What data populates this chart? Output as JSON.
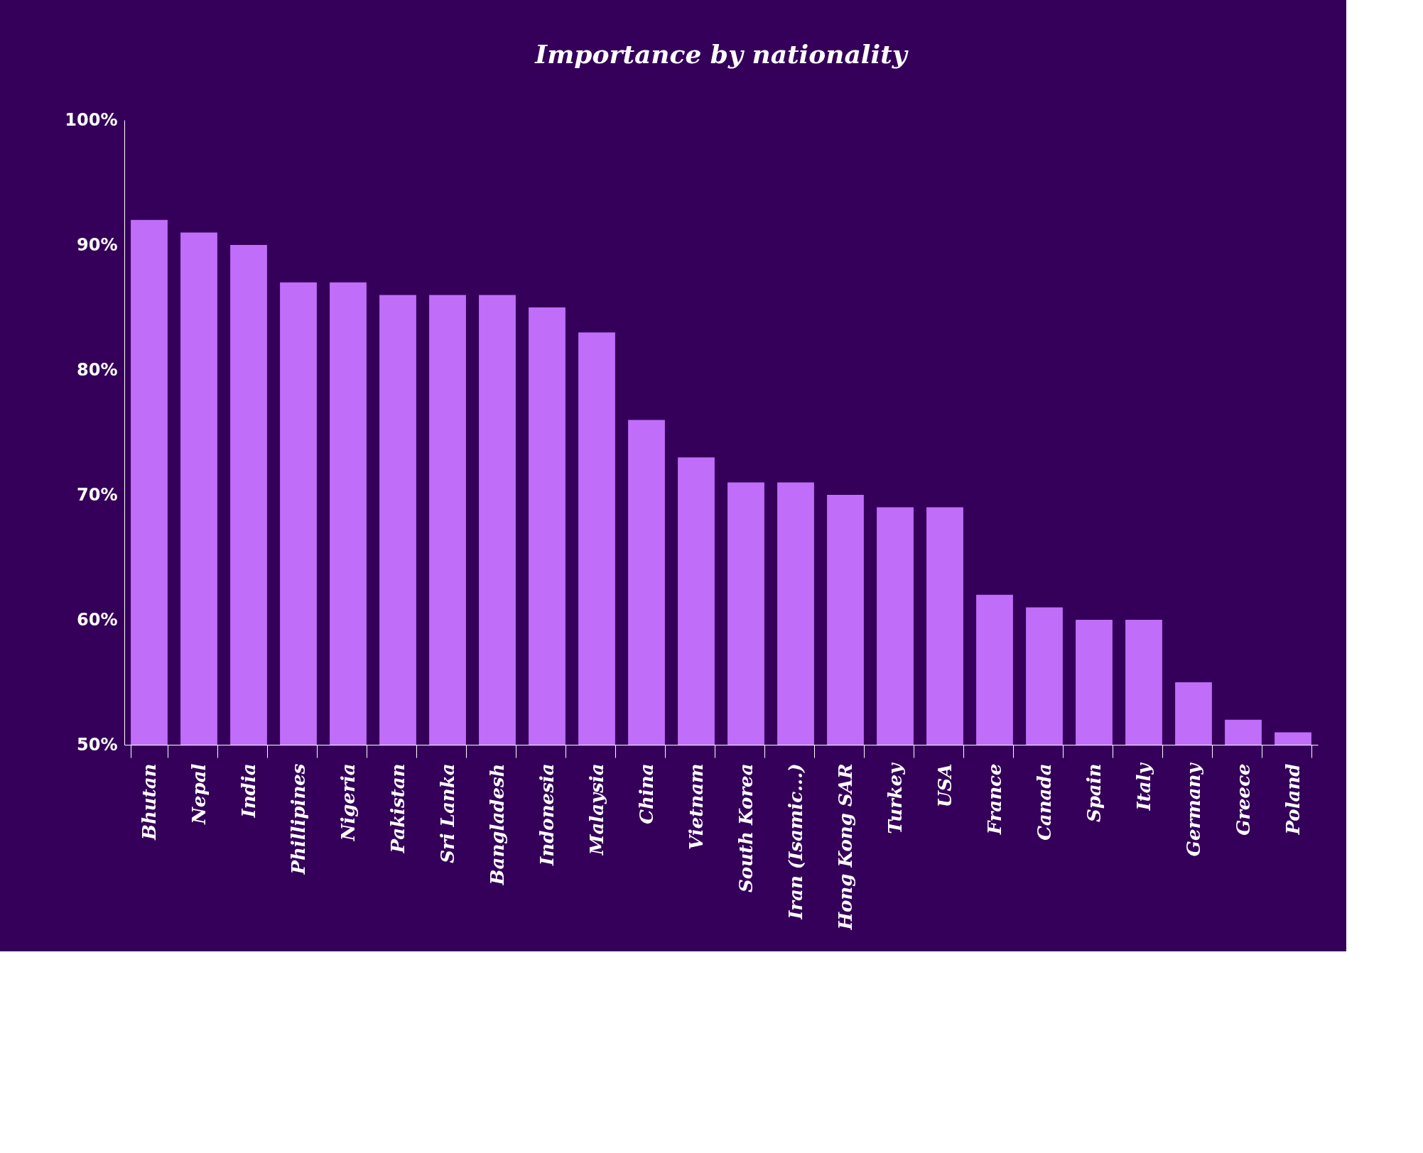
{
  "chart_data": {
    "type": "bar",
    "title": "Importance by nationality",
    "categories": [
      "Bhutan",
      "Nepal",
      "India",
      "Phillipines",
      "Nigeria",
      "Pakistan",
      "Sri Lanka",
      "Bangladesh",
      "Indonesia",
      "Malaysia",
      "China",
      "Vietnam",
      "South Korea",
      "Iran (Isamic...)",
      "Hong Kong SAR",
      "Turkey",
      "USA",
      "France",
      "Canada",
      "Spain",
      "Italy",
      "Germany",
      "Greece",
      "Poland"
    ],
    "values": [
      92,
      91,
      90,
      87,
      87,
      86,
      86,
      86,
      85,
      83,
      76,
      73,
      71,
      71,
      70,
      69,
      69,
      62,
      61,
      60,
      60,
      55,
      52,
      51
    ],
    "color": "#c06ef9",
    "ylim": [
      50,
      100
    ],
    "yticks": [
      {
        "value": 50,
        "label": "50%"
      },
      {
        "value": 60,
        "label": "60%"
      },
      {
        "value": 70,
        "label": "70%"
      },
      {
        "value": 80,
        "label": "80%"
      },
      {
        "value": 90,
        "label": "90%"
      },
      {
        "value": 100,
        "label": "100%"
      }
    ],
    "grid": false
  }
}
